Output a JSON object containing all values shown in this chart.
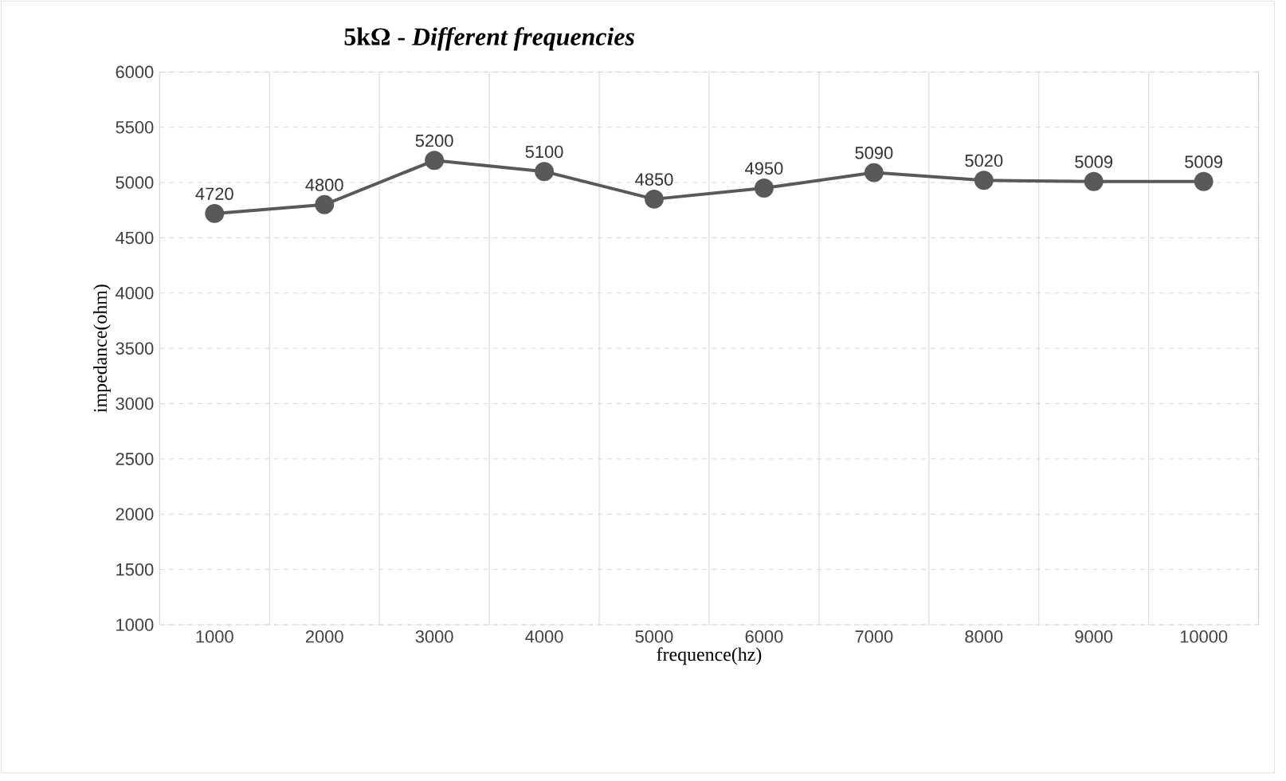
{
  "chart_data": {
    "type": "line",
    "title": "5kΩ - *Different frequencies*",
    "xlabel": "frequence(hz)",
    "ylabel": "impedance(ohm)",
    "categories": [
      "1000",
      "2000",
      "3000",
      "4000",
      "5000",
      "6000",
      "7000",
      "8000",
      "9000",
      "10000"
    ],
    "values": [
      4720,
      4800,
      5200,
      5100,
      4850,
      4950,
      5090,
      5020,
      5009,
      5009
    ],
    "color": "#595959",
    "marker": "circle",
    "line_style": "solid",
    "data_labels": true,
    "grid": true,
    "ylim": [
      1000,
      6000
    ],
    "yticks": [
      1000,
      1500,
      2000,
      2500,
      3000,
      3500,
      4000,
      4500,
      5000,
      5500,
      6000
    ]
  }
}
